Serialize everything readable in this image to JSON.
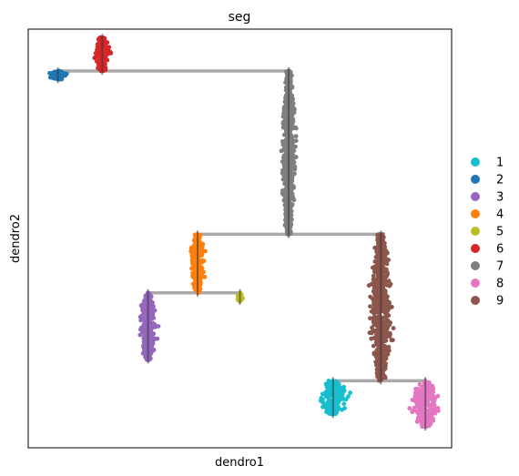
{
  "chart_data": {
    "type": "scatter",
    "title": "seg",
    "xlabel": "dendro1",
    "ylabel": "dendro2",
    "xticks": "none",
    "yticks": "none",
    "grid": false,
    "legend": {
      "placement": "right",
      "entries": [
        {
          "label": "1",
          "color": "#17becf"
        },
        {
          "label": "2",
          "color": "#1f77b4"
        },
        {
          "label": "3",
          "color": "#9467bd"
        },
        {
          "label": "4",
          "color": "#ff7f0e"
        },
        {
          "label": "5",
          "color": "#bcbd22"
        },
        {
          "label": "6",
          "color": "#d62728"
        },
        {
          "label": "7",
          "color": "#7f7f7f"
        },
        {
          "label": "8",
          "color": "#e377c2"
        },
        {
          "label": "9",
          "color": "#8c564b"
        }
      ]
    },
    "branch_color": "#aaaaaa",
    "branches": [
      {
        "from": "2",
        "to": "6",
        "y": 0.9
      },
      {
        "from": "6",
        "to": "7",
        "y": 0.9
      },
      {
        "from": "4",
        "to": "7",
        "y": 0.51
      },
      {
        "from": "7",
        "to": "9",
        "y": 0.51
      },
      {
        "from": "3",
        "to": "4",
        "y": 0.37
      },
      {
        "from": "4",
        "to": "5",
        "y": 0.37
      },
      {
        "from": "1",
        "to": "9",
        "y": 0.16
      },
      {
        "from": "9",
        "to": "8",
        "y": 0.16
      }
    ],
    "segments": [
      {
        "seg": "2",
        "x": 0.07,
        "y_start": 0.88,
        "y_end": 0.9,
        "width": 0.07
      },
      {
        "seg": "6",
        "x": 0.175,
        "y_start": 0.9,
        "y_end": 0.98,
        "width": 0.06
      },
      {
        "seg": "7",
        "x": 0.615,
        "y_start": 0.51,
        "y_end": 0.9,
        "width": 0.05
      },
      {
        "seg": "4",
        "x": 0.4,
        "y_start": 0.37,
        "y_end": 0.51,
        "width": 0.05
      },
      {
        "seg": "5",
        "x": 0.5,
        "y_start": 0.35,
        "y_end": 0.37,
        "width": 0.02
      },
      {
        "seg": "3",
        "x": 0.283,
        "y_start": 0.21,
        "y_end": 0.37,
        "width": 0.06
      },
      {
        "seg": "9",
        "x": 0.833,
        "y_start": 0.16,
        "y_end": 0.51,
        "width": 0.08
      },
      {
        "seg": "1",
        "x": 0.72,
        "y_start": 0.08,
        "y_end": 0.16,
        "width": 0.1
      },
      {
        "seg": "8",
        "x": 0.938,
        "y_start": 0.05,
        "y_end": 0.16,
        "width": 0.1
      }
    ]
  }
}
